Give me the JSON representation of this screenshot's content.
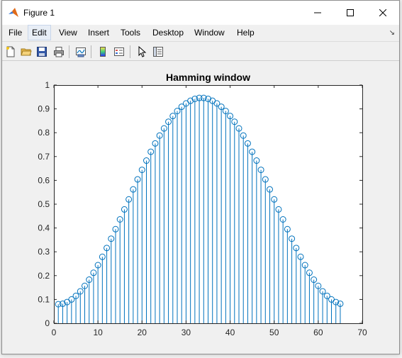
{
  "window": {
    "title": "Figure 1",
    "controls": [
      "minimize",
      "maximize",
      "close"
    ]
  },
  "menu": {
    "items": [
      "File",
      "Edit",
      "View",
      "Insert",
      "Tools",
      "Desktop",
      "Window",
      "Help"
    ],
    "active": "Edit"
  },
  "toolbar": {
    "buttons": [
      {
        "name": "new-figure",
        "icon": "new-file-icon"
      },
      {
        "name": "open-file",
        "icon": "folder-open-icon"
      },
      {
        "name": "save-figure",
        "icon": "floppy-disk-icon"
      },
      {
        "name": "print-figure",
        "icon": "printer-icon"
      },
      {
        "name": "link-plot",
        "icon": "link-plot-icon"
      },
      {
        "name": "insert-colorbar",
        "icon": "colorbar-icon"
      },
      {
        "name": "insert-legend",
        "icon": "legend-icon"
      },
      {
        "name": "edit-plot",
        "icon": "pointer-arrow-icon"
      },
      {
        "name": "property-inspector",
        "icon": "property-inspector-icon"
      }
    ]
  },
  "colors": {
    "stem": "#0072BD",
    "axes_bg": "#ffffff",
    "figure_bg": "#f0f0f0"
  },
  "chart_data": {
    "type": "stem",
    "title": "Hamming window",
    "xlabel": "",
    "ylabel": "",
    "xlim": [
      0,
      70
    ],
    "ylim": [
      0,
      1
    ],
    "xticks": [
      0,
      10,
      20,
      30,
      40,
      50,
      60,
      70
    ],
    "yticks": [
      0,
      0.1,
      0.2,
      0.3,
      0.4,
      0.5,
      0.6,
      0.7,
      0.8,
      0.9,
      1
    ],
    "grid": false,
    "series": [
      {
        "x": [
          1,
          2,
          3,
          4,
          5,
          6,
          7,
          8,
          9,
          10,
          11,
          12,
          13,
          14,
          15,
          16,
          17,
          18,
          19,
          20,
          21,
          22,
          23,
          24,
          25,
          26,
          27,
          28,
          29,
          30,
          31,
          32,
          33,
          34,
          35,
          36,
          37,
          38,
          39,
          40,
          41,
          42,
          43,
          44,
          45,
          46,
          47,
          48,
          49,
          50,
          51,
          52,
          53,
          54,
          55,
          56,
          57,
          58,
          59,
          60,
          61,
          62,
          63,
          64,
          65
        ],
        "y": [
          0.08,
          0.082,
          0.089,
          0.1,
          0.115,
          0.134,
          0.157,
          0.183,
          0.212,
          0.244,
          0.279,
          0.316,
          0.355,
          0.395,
          0.436,
          0.478,
          0.52,
          0.562,
          0.604,
          0.644,
          0.683,
          0.72,
          0.755,
          0.788,
          0.818,
          0.846,
          0.87,
          0.891,
          0.909,
          0.923,
          0.934,
          0.942,
          0.946,
          0.946,
          0.942,
          0.934,
          0.923,
          0.909,
          0.891,
          0.87,
          0.846,
          0.818,
          0.788,
          0.755,
          0.72,
          0.683,
          0.644,
          0.604,
          0.562,
          0.52,
          0.478,
          0.436,
          0.395,
          0.355,
          0.316,
          0.279,
          0.244,
          0.212,
          0.183,
          0.157,
          0.134,
          0.115,
          0.1,
          0.089,
          0.082
        ]
      }
    ]
  }
}
